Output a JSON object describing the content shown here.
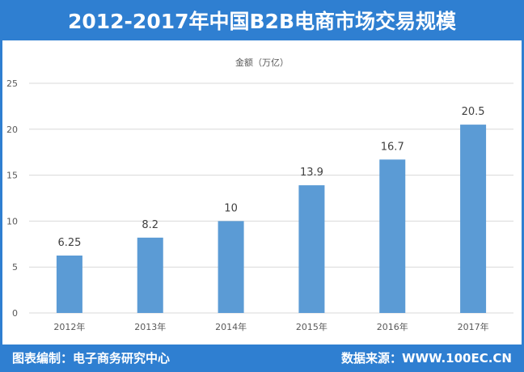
{
  "header": {
    "title": "2012-2017年中国B2B电商市场交易规模"
  },
  "footer": {
    "compiler": "图表编制：电子商务研究中心",
    "source": "数据来源：WWW.100EC.CN"
  },
  "colors": {
    "accent": "#2f7fd1",
    "bar": "#5b9bd5",
    "grid": "#d9d9d9"
  },
  "chart_data": {
    "type": "bar",
    "title": "",
    "ylabel": "金额（万亿）",
    "categories": [
      "2012年",
      "2013年",
      "2014年",
      "2015年",
      "2016年",
      "2017年"
    ],
    "values": [
      6.25,
      8.2,
      10,
      13.9,
      16.7,
      20.5
    ],
    "value_labels": [
      "6.25",
      "8.2",
      "10",
      "13.9",
      "16.7",
      "20.5"
    ],
    "ylim": [
      0,
      25
    ],
    "yticks": [
      0,
      5,
      10,
      15,
      20,
      25
    ],
    "ytick_labels": [
      "0",
      "5",
      "10",
      "15",
      "20",
      "25"
    ],
    "grid": true
  }
}
